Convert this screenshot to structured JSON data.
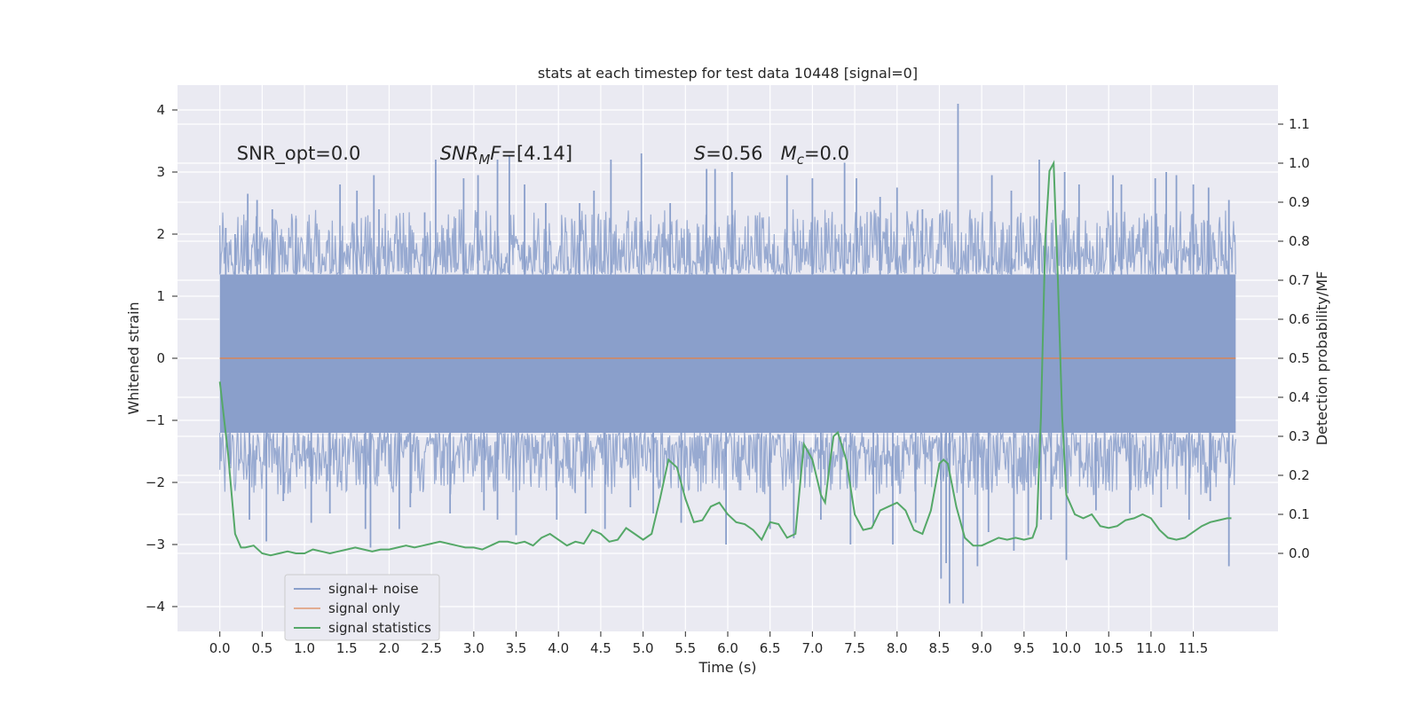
{
  "chart_data": {
    "type": "line",
    "title": "stats at each timestep for test data 10448 [signal=0]",
    "xlabel": "Time (s)",
    "ylabel": "Whitened strain",
    "ylabel_right": "Detection probability/MF",
    "xlim": [
      -0.5,
      12.5
    ],
    "ylim": [
      -4.4,
      4.4
    ],
    "ylim_right": [
      -0.2,
      1.2
    ],
    "grid": true,
    "legend_position": "lower-left",
    "x_ticks": [
      "0.0",
      "0.5",
      "1.0",
      "1.5",
      "2.0",
      "2.5",
      "3.0",
      "3.5",
      "4.0",
      "4.5",
      "5.0",
      "5.5",
      "6.0",
      "6.5",
      "7.0",
      "7.5",
      "8.0",
      "8.5",
      "9.0",
      "9.5",
      "10.0",
      "10.5",
      "11.0",
      "11.5"
    ],
    "y_ticks": [
      "4",
      "3",
      "2",
      "1",
      "0",
      "−1",
      "−2",
      "−3",
      "−4"
    ],
    "y_ticks_right": [
      "1.1",
      "1.0",
      "0.9",
      "0.8",
      "0.7",
      "0.6",
      "0.5",
      "0.4",
      "0.3",
      "0.2",
      "0.1",
      "0.0"
    ],
    "annotations": [
      {
        "text": "SNR_opt=0.0",
        "x": 0.2,
        "y": 3.3
      },
      {
        "text": "SNR_MF=[4.14]",
        "x": 2.6,
        "y": 3.3
      },
      {
        "text": "S=0.56  M_c=0.0",
        "x": 5.6,
        "y": 3.3
      }
    ],
    "series": [
      {
        "name": "signal+ noise",
        "color": "#8a9fcb",
        "axis": "left",
        "kind": "noise-band",
        "x_range": [
          0.0,
          12.0
        ],
        "core_band": [
          -1.2,
          1.35
        ],
        "max": 4.1,
        "min": -3.95,
        "spikes": [
          {
            "x": 0.07,
            "y": 2.1
          },
          {
            "x": 0.18,
            "y": 2.0
          },
          {
            "x": 0.33,
            "y": 2.65
          },
          {
            "x": 0.44,
            "y": 2.55
          },
          {
            "x": 0.62,
            "y": 2.4
          },
          {
            "x": 0.9,
            "y": 2.25
          },
          {
            "x": 1.42,
            "y": 2.8
          },
          {
            "x": 1.62,
            "y": 2.7
          },
          {
            "x": 1.82,
            "y": 2.95
          },
          {
            "x": 1.88,
            "y": 2.4
          },
          {
            "x": 2.42,
            "y": 2.35
          },
          {
            "x": 2.55,
            "y": 3.2
          },
          {
            "x": 2.88,
            "y": 2.9
          },
          {
            "x": 3.05,
            "y": 2.95
          },
          {
            "x": 3.28,
            "y": 3.2
          },
          {
            "x": 3.42,
            "y": 3.25
          },
          {
            "x": 3.6,
            "y": 2.8
          },
          {
            "x": 3.85,
            "y": 2.5
          },
          {
            "x": 4.25,
            "y": 2.5
          },
          {
            "x": 4.42,
            "y": 2.7
          },
          {
            "x": 4.62,
            "y": 3.2
          },
          {
            "x": 4.98,
            "y": 3.3
          },
          {
            "x": 5.32,
            "y": 2.5
          },
          {
            "x": 5.75,
            "y": 3.05
          },
          {
            "x": 5.85,
            "y": 3.05
          },
          {
            "x": 6.05,
            "y": 3.0
          },
          {
            "x": 6.7,
            "y": 2.95
          },
          {
            "x": 7.0,
            "y": 2.9
          },
          {
            "x": 7.38,
            "y": 3.15
          },
          {
            "x": 7.52,
            "y": 2.9
          },
          {
            "x": 7.8,
            "y": 2.6
          },
          {
            "x": 8.0,
            "y": 2.75
          },
          {
            "x": 8.3,
            "y": 2.4
          },
          {
            "x": 8.72,
            "y": 4.1
          },
          {
            "x": 9.12,
            "y": 2.95
          },
          {
            "x": 9.35,
            "y": 2.7
          },
          {
            "x": 9.68,
            "y": 3.2
          },
          {
            "x": 9.98,
            "y": 3.0
          },
          {
            "x": 10.15,
            "y": 2.8
          },
          {
            "x": 10.55,
            "y": 2.95
          },
          {
            "x": 10.65,
            "y": 2.8
          },
          {
            "x": 11.05,
            "y": 2.9
          },
          {
            "x": 11.18,
            "y": 3.0
          },
          {
            "x": 11.3,
            "y": 2.95
          },
          {
            "x": 11.5,
            "y": 2.8
          },
          {
            "x": 11.68,
            "y": 2.75
          },
          {
            "x": 11.92,
            "y": 2.55
          },
          {
            "x": 0.12,
            "y": -1.7
          },
          {
            "x": 0.35,
            "y": -2.6
          },
          {
            "x": 0.55,
            "y": -2.95
          },
          {
            "x": 0.75,
            "y": -2.3
          },
          {
            "x": 1.08,
            "y": -2.65
          },
          {
            "x": 1.3,
            "y": -2.5
          },
          {
            "x": 1.72,
            "y": -2.75
          },
          {
            "x": 1.78,
            "y": -3.05
          },
          {
            "x": 2.12,
            "y": -2.75
          },
          {
            "x": 2.25,
            "y": -2.4
          },
          {
            "x": 2.72,
            "y": -2.5
          },
          {
            "x": 3.12,
            "y": -2.45
          },
          {
            "x": 3.28,
            "y": -2.6
          },
          {
            "x": 3.5,
            "y": -2.85
          },
          {
            "x": 3.98,
            "y": -2.6
          },
          {
            "x": 4.32,
            "y": -2.5
          },
          {
            "x": 4.55,
            "y": -2.75
          },
          {
            "x": 4.85,
            "y": -2.4
          },
          {
            "x": 5.12,
            "y": -2.5
          },
          {
            "x": 5.45,
            "y": -2.65
          },
          {
            "x": 5.98,
            "y": -3.0
          },
          {
            "x": 6.5,
            "y": -2.75
          },
          {
            "x": 6.78,
            "y": -2.9
          },
          {
            "x": 7.1,
            "y": -2.6
          },
          {
            "x": 7.45,
            "y": -3.0
          },
          {
            "x": 7.72,
            "y": -2.7
          },
          {
            "x": 7.95,
            "y": -3.0
          },
          {
            "x": 8.22,
            "y": -2.65
          },
          {
            "x": 8.52,
            "y": -3.55
          },
          {
            "x": 8.58,
            "y": -3.3
          },
          {
            "x": 8.62,
            "y": -3.95
          },
          {
            "x": 8.78,
            "y": -3.95
          },
          {
            "x": 8.95,
            "y": -3.35
          },
          {
            "x": 9.08,
            "y": -2.8
          },
          {
            "x": 9.38,
            "y": -3.1
          },
          {
            "x": 9.55,
            "y": -2.85
          },
          {
            "x": 9.7,
            "y": -2.6
          },
          {
            "x": 9.82,
            "y": -2.6
          },
          {
            "x": 10.0,
            "y": -3.25
          },
          {
            "x": 10.35,
            "y": -2.45
          },
          {
            "x": 10.75,
            "y": -2.5
          },
          {
            "x": 11.12,
            "y": -2.4
          },
          {
            "x": 11.45,
            "y": -2.6
          },
          {
            "x": 11.7,
            "y": -2.3
          },
          {
            "x": 11.92,
            "y": -3.35
          }
        ]
      },
      {
        "name": "signal only",
        "color": "#dd8452",
        "axis": "left",
        "x": [
          0.0,
          12.0
        ],
        "values": [
          0.0,
          0.0
        ]
      },
      {
        "name": "signal statistics",
        "color": "#55a868",
        "axis": "right",
        "x": [
          0.0,
          0.1,
          0.18,
          0.25,
          0.3,
          0.4,
          0.5,
          0.6,
          0.7,
          0.8,
          0.9,
          1.0,
          1.1,
          1.2,
          1.3,
          1.4,
          1.5,
          1.6,
          1.7,
          1.8,
          1.9,
          2.0,
          2.1,
          2.2,
          2.3,
          2.4,
          2.5,
          2.6,
          2.7,
          2.8,
          2.9,
          3.0,
          3.1,
          3.2,
          3.3,
          3.4,
          3.5,
          3.6,
          3.7,
          3.8,
          3.9,
          4.0,
          4.1,
          4.2,
          4.3,
          4.4,
          4.5,
          4.6,
          4.7,
          4.8,
          4.9,
          5.0,
          5.1,
          5.2,
          5.3,
          5.4,
          5.5,
          5.6,
          5.7,
          5.8,
          5.9,
          6.0,
          6.1,
          6.2,
          6.3,
          6.4,
          6.5,
          6.6,
          6.7,
          6.8,
          6.9,
          7.0,
          7.1,
          7.15,
          7.2,
          7.25,
          7.3,
          7.4,
          7.5,
          7.6,
          7.7,
          7.8,
          7.9,
          8.0,
          8.1,
          8.2,
          8.3,
          8.4,
          8.5,
          8.55,
          8.6,
          8.7,
          8.8,
          8.9,
          9.0,
          9.1,
          9.2,
          9.3,
          9.4,
          9.5,
          9.6,
          9.65,
          9.7,
          9.75,
          9.8,
          9.85,
          9.9,
          9.95,
          10.0,
          10.1,
          10.2,
          10.3,
          10.4,
          10.5,
          10.6,
          10.7,
          10.8,
          10.9,
          11.0,
          11.1,
          11.2,
          11.3,
          11.4,
          11.5,
          11.6,
          11.7,
          11.8,
          11.9,
          11.95
        ],
        "values": [
          0.44,
          0.25,
          0.05,
          0.015,
          0.015,
          0.02,
          0.0,
          -0.005,
          0.0,
          0.005,
          0.0,
          0.0,
          0.01,
          0.005,
          0.0,
          0.005,
          0.01,
          0.015,
          0.01,
          0.005,
          0.01,
          0.01,
          0.015,
          0.02,
          0.015,
          0.02,
          0.025,
          0.03,
          0.025,
          0.02,
          0.015,
          0.015,
          0.01,
          0.02,
          0.03,
          0.03,
          0.025,
          0.03,
          0.02,
          0.04,
          0.05,
          0.035,
          0.02,
          0.03,
          0.025,
          0.06,
          0.05,
          0.03,
          0.035,
          0.065,
          0.05,
          0.035,
          0.05,
          0.14,
          0.24,
          0.22,
          0.14,
          0.08,
          0.085,
          0.12,
          0.13,
          0.1,
          0.08,
          0.075,
          0.06,
          0.035,
          0.08,
          0.075,
          0.04,
          0.05,
          0.28,
          0.24,
          0.15,
          0.13,
          0.22,
          0.3,
          0.31,
          0.24,
          0.1,
          0.06,
          0.065,
          0.11,
          0.12,
          0.13,
          0.11,
          0.06,
          0.05,
          0.11,
          0.23,
          0.24,
          0.23,
          0.12,
          0.04,
          0.02,
          0.02,
          0.03,
          0.04,
          0.035,
          0.04,
          0.035,
          0.04,
          0.07,
          0.35,
          0.8,
          0.98,
          1.0,
          0.7,
          0.35,
          0.15,
          0.1,
          0.09,
          0.1,
          0.07,
          0.065,
          0.07,
          0.085,
          0.09,
          0.1,
          0.09,
          0.06,
          0.04,
          0.035,
          0.04,
          0.055,
          0.07,
          0.08,
          0.085,
          0.09,
          0.09
        ]
      }
    ]
  }
}
